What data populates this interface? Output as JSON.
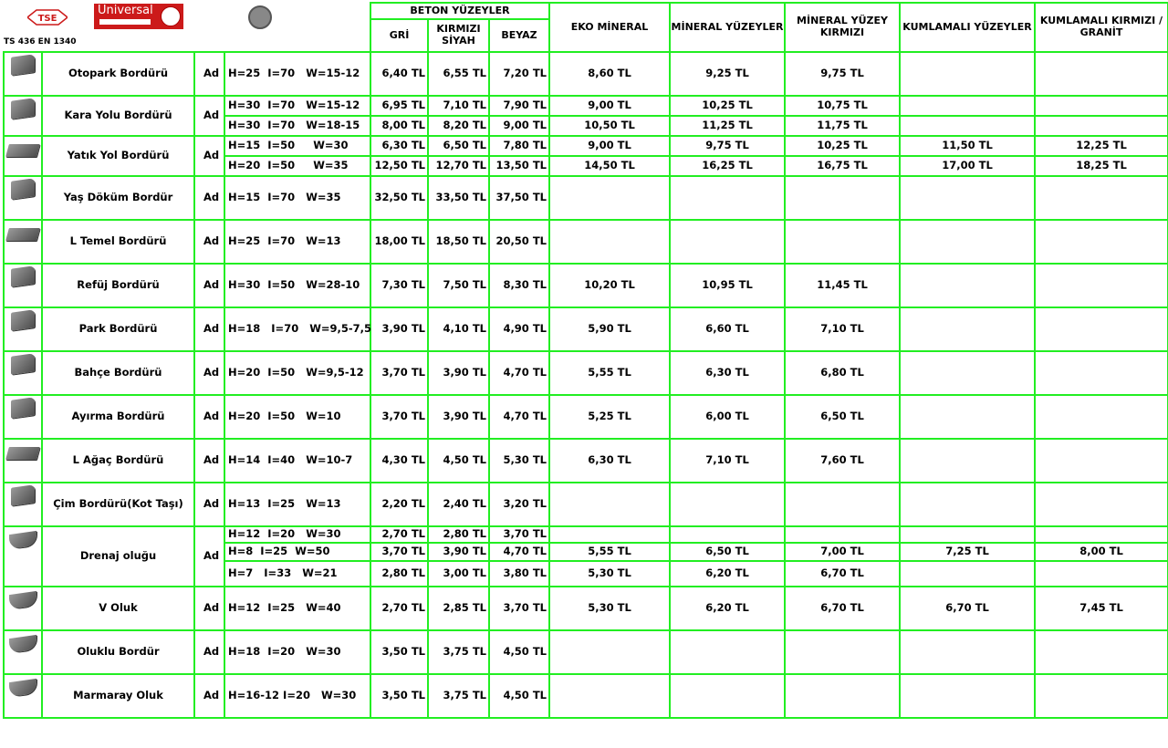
{
  "header": {
    "standards": "TS 436  EN 1340",
    "logo_tse": "TSE",
    "logo_universal": "Universal",
    "beton_group": "BETON YÜZEYLER",
    "col_gri": "GRİ",
    "col_kirmizi": "KIRMIZI SİYAH",
    "col_beyaz": "BEYAZ",
    "col_eko": "EKO MİNERAL",
    "col_mineral": "MİNERAL YÜZEYLER",
    "col_mineral_kirmizi": "MİNERAL YÜZEY KIRMIZI",
    "col_kumlamali": "KUMLAMALI YÜZEYLER",
    "col_kumlamali_granit": "KUMLAMALI KIRMIZI / GRANİT"
  },
  "unit": "Ad",
  "rows": [
    {
      "name": "Otopark Bordürü",
      "lines": [
        {
          "dim": "H=25  I=70   W=15-12",
          "gri": "6,40 TL",
          "kir": "6,55 TL",
          "bey": "7,20 TL",
          "eko": "8,60 TL",
          "min": "9,25 TL",
          "mink": "9,75 TL",
          "kum": "",
          "kumg": ""
        }
      ]
    },
    {
      "name": "Kara Yolu Bordürü",
      "lines": [
        {
          "dim": "H=30  I=70   W=15-12",
          "gri": "6,95 TL",
          "kir": "7,10 TL",
          "bey": "7,90 TL",
          "eko": "9,00 TL",
          "min": "10,25 TL",
          "mink": "10,75 TL",
          "kum": "",
          "kumg": ""
        },
        {
          "dim": "H=30  I=70   W=18-15",
          "gri": "8,00 TL",
          "kir": "8,20 TL",
          "bey": "9,00 TL",
          "eko": "10,50 TL",
          "min": "11,25 TL",
          "mink": "11,75 TL",
          "kum": "",
          "kumg": ""
        }
      ]
    },
    {
      "name": "Yatık Yol Bordürü",
      "lines": [
        {
          "dim": "H=15  I=50     W=30",
          "gri": "6,30 TL",
          "kir": "6,50 TL",
          "bey": "7,80 TL",
          "eko": "9,00 TL",
          "min": "9,75 TL",
          "mink": "10,25 TL",
          "kum": "11,50 TL",
          "kumg": "12,25 TL"
        },
        {
          "dim": "H=20  I=50     W=35",
          "gri": "12,50 TL",
          "kir": "12,70 TL",
          "bey": "13,50 TL",
          "eko": "14,50 TL",
          "min": "16,25 TL",
          "mink": "16,75 TL",
          "kum": "17,00 TL",
          "kumg": "18,25 TL"
        }
      ]
    },
    {
      "name": "Yaş Döküm Bordür",
      "lines": [
        {
          "dim": "H=15  I=70   W=35",
          "gri": "32,50 TL",
          "kir": "33,50 TL",
          "bey": "37,50 TL",
          "eko": "",
          "min": "",
          "mink": "",
          "kum": "",
          "kumg": ""
        }
      ]
    },
    {
      "name": "L Temel Bordürü",
      "lines": [
        {
          "dim": "H=25  I=70   W=13",
          "gri": "18,00 TL",
          "kir": "18,50 TL",
          "bey": "20,50 TL",
          "eko": "",
          "min": "",
          "mink": "",
          "kum": "",
          "kumg": ""
        }
      ]
    },
    {
      "name": "Refüj Bordürü",
      "lines": [
        {
          "dim": "H=30  I=50   W=28-10",
          "gri": "7,30 TL",
          "kir": "7,50 TL",
          "bey": "8,30 TL",
          "eko": "10,20 TL",
          "min": "10,95 TL",
          "mink": "11,45 TL",
          "kum": "",
          "kumg": ""
        }
      ]
    },
    {
      "name": "Park Bordürü",
      "lines": [
        {
          "dim": "H=18   I=70   W=9,5-7,5",
          "gri": "3,90 TL",
          "kir": "4,10 TL",
          "bey": "4,90 TL",
          "eko": "5,90 TL",
          "min": "6,60 TL",
          "mink": "7,10 TL",
          "kum": "",
          "kumg": ""
        }
      ]
    },
    {
      "name": "Bahçe Bordürü",
      "lines": [
        {
          "dim": "H=20  I=50   W=9,5-12",
          "gri": "3,70 TL",
          "kir": "3,90 TL",
          "bey": "4,70 TL",
          "eko": "5,55 TL",
          "min": "6,30 TL",
          "mink": "6,80 TL",
          "kum": "",
          "kumg": ""
        }
      ]
    },
    {
      "name": "Ayırma Bordürü",
      "lines": [
        {
          "dim": "H=20  I=50   W=10",
          "gri": "3,70 TL",
          "kir": "3,90 TL",
          "bey": "4,70 TL",
          "eko": "5,25 TL",
          "min": "6,00 TL",
          "mink": "6,50 TL",
          "kum": "",
          "kumg": ""
        }
      ]
    },
    {
      "name": "L Ağaç Bordürü",
      "lines": [
        {
          "dim": "H=14  I=40   W=10-7",
          "gri": "4,30 TL",
          "kir": "4,50 TL",
          "bey": "5,30 TL",
          "eko": "6,30 TL",
          "min": "7,10 TL",
          "mink": "7,60 TL",
          "kum": "",
          "kumg": ""
        }
      ]
    },
    {
      "name": "Çim Bordürü(Kot Taşı)",
      "lines": [
        {
          "dim": "H=13  I=25   W=13",
          "gri": "2,20 TL",
          "kir": "2,40 TL",
          "bey": "3,20 TL",
          "eko": "",
          "min": "",
          "mink": "",
          "kum": "",
          "kumg": ""
        }
      ]
    },
    {
      "name": "Drenaj oluğu",
      "lines": [
        {
          "dim": "H=12  I=20   W=30",
          "gri": "2,70 TL",
          "kir": "2,80 TL",
          "bey": "3,70 TL",
          "eko": "",
          "min": "",
          "mink": "",
          "kum": "",
          "kumg": ""
        },
        {
          "dim": "H=8  I=25  W=50",
          "gri": "3,70 TL",
          "kir": "3,90 TL",
          "bey": "4,70 TL",
          "eko": "5,55 TL",
          "min": "6,50 TL",
          "mink": "7,00 TL",
          "kum": "7,25 TL",
          "kumg": "8,00 TL"
        },
        {
          "dim": "H=7   I=33   W=21",
          "gri": "2,80 TL",
          "kir": "3,00 TL",
          "bey": "3,80 TL",
          "eko": "5,30 TL",
          "min": "6,20 TL",
          "mink": "6,70 TL",
          "kum": "",
          "kumg": ""
        }
      ]
    },
    {
      "name": "V Oluk",
      "lines": [
        {
          "dim": "H=12  I=25   W=40",
          "gri": "2,70 TL",
          "kir": "2,85 TL",
          "bey": "3,70 TL",
          "eko": "5,30 TL",
          "min": "6,20 TL",
          "mink": "6,70 TL",
          "kum": "6,70 TL",
          "kumg": "7,45 TL"
        }
      ]
    },
    {
      "name": "Oluklu Bordür",
      "lines": [
        {
          "dim": "H=18  I=20   W=30",
          "gri": "3,50 TL",
          "kir": "3,75 TL",
          "bey": "4,50 TL",
          "eko": "",
          "min": "",
          "mink": "",
          "kum": "",
          "kumg": ""
        }
      ]
    },
    {
      "name": "Marmaray Oluk",
      "lines": [
        {
          "dim": "H=16-12 I=20   W=30",
          "gri": "3,50 TL",
          "kir": "3,75 TL",
          "bey": "4,50 TL",
          "eko": "",
          "min": "",
          "mink": "",
          "kum": "",
          "kumg": ""
        }
      ]
    }
  ]
}
